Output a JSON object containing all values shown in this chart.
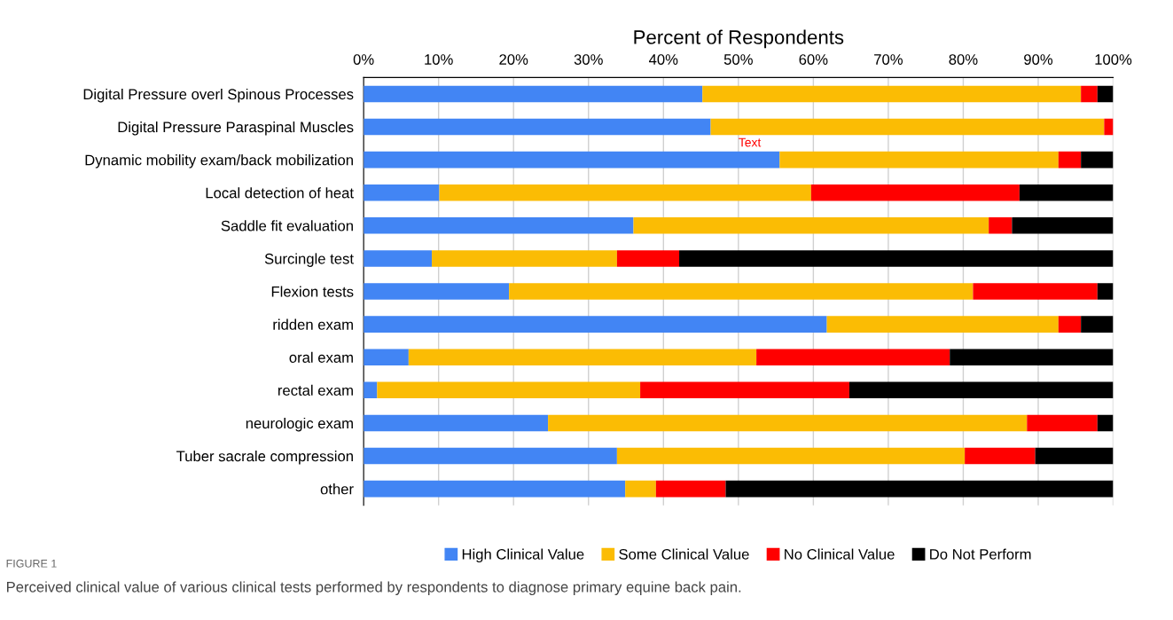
{
  "chart_data": {
    "type": "bar",
    "orientation": "horizontal",
    "stacked": true,
    "xlabel": "Percent of Respondents",
    "categories": [
      "Digital Pressure overl Spinous Processes",
      "Digital Pressure Paraspinal Muscles",
      "Dynamic mobility exam/back mobilization",
      "Local detection of heat",
      "Saddle fit evaluation",
      "Surcingle test",
      "Flexion tests",
      "ridden exam",
      "oral exam",
      "rectal exam",
      "neurologic exam",
      "Tuber sacrale compression",
      "other"
    ],
    "series": [
      {
        "name": "High Clinical Value",
        "color": "#4285f4",
        "values": [
          45.2,
          46.3,
          55.5,
          10.1,
          36.0,
          9.1,
          19.4,
          61.8,
          6.0,
          1.8,
          24.6,
          33.8,
          34.9
        ]
      },
      {
        "name": "Some Clinical Value",
        "color": "#fbbc04",
        "values": [
          50.5,
          52.5,
          37.2,
          49.6,
          47.4,
          24.7,
          61.9,
          30.9,
          46.4,
          35.1,
          63.9,
          46.4,
          4.1
        ]
      },
      {
        "name": "No Clinical Value",
        "color": "#ff0000",
        "values": [
          2.2,
          1.2,
          3.0,
          27.8,
          3.1,
          8.3,
          16.6,
          3.0,
          25.8,
          27.9,
          9.4,
          9.4,
          9.3
        ]
      },
      {
        "name": "Do Not Perform",
        "color": "#000000",
        "values": [
          2.1,
          0,
          4.3,
          12.5,
          13.5,
          57.9,
          2.1,
          4.3,
          21.8,
          35.2,
          2.1,
          10.4,
          51.7
        ]
      }
    ],
    "xlim": [
      0,
      100
    ],
    "xticks": [
      {
        "value": 0,
        "label": "0%"
      },
      {
        "value": 10,
        "label": "10%"
      },
      {
        "value": 20,
        "label": "20%"
      },
      {
        "value": 30,
        "label": "30%"
      },
      {
        "value": 40,
        "label": "40%"
      },
      {
        "value": 50,
        "label": "50%"
      },
      {
        "value": 60,
        "label": "60%"
      },
      {
        "value": 70,
        "label": "70%"
      },
      {
        "value": 80,
        "label": "80%"
      },
      {
        "value": 90,
        "label": "90%"
      },
      {
        "value": 100,
        "label": "100%"
      }
    ],
    "grid": "x",
    "legend": "bottom",
    "annotations": [
      "Text",
      "FIGURE 1",
      "Perceived clinical value of various clinical tests performed by respondents to diagnose primary equine back pain."
    ]
  }
}
